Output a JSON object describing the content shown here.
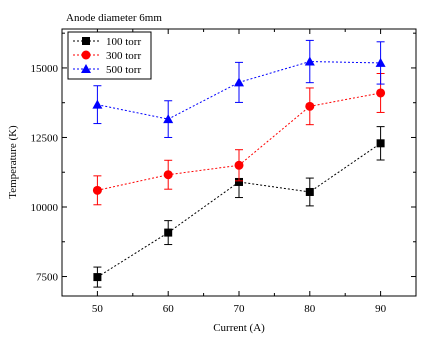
{
  "chart_data": {
    "type": "line",
    "title": "Anode diameter 6mm",
    "xlabel": "Current (A)",
    "ylabel": "Temperature (K)",
    "x": [
      50,
      60,
      70,
      80,
      90
    ],
    "xlim": [
      45,
      95
    ],
    "ylim": [
      6800,
      16400
    ],
    "xticks": [
      50,
      60,
      70,
      80,
      90
    ],
    "yticks": [
      7500,
      10000,
      12500,
      15000
    ],
    "legend_position": "top-left",
    "series": [
      {
        "name": "100 torr",
        "color": "#000000",
        "marker": "square",
        "values": [
          7480,
          9080,
          10900,
          10540,
          12290
        ],
        "errors": [
          360,
          430,
          560,
          500,
          600
        ]
      },
      {
        "name": "300 torr",
        "color": "#ff0000",
        "marker": "circle",
        "values": [
          10600,
          11160,
          11500,
          13620,
          14100
        ],
        "errors": [
          520,
          520,
          560,
          660,
          700
        ]
      },
      {
        "name": "500 torr",
        "color": "#0000ff",
        "marker": "triangle",
        "values": [
          13680,
          13160,
          14480,
          15230,
          15180
        ],
        "errors": [
          680,
          660,
          720,
          760,
          760
        ]
      }
    ]
  }
}
